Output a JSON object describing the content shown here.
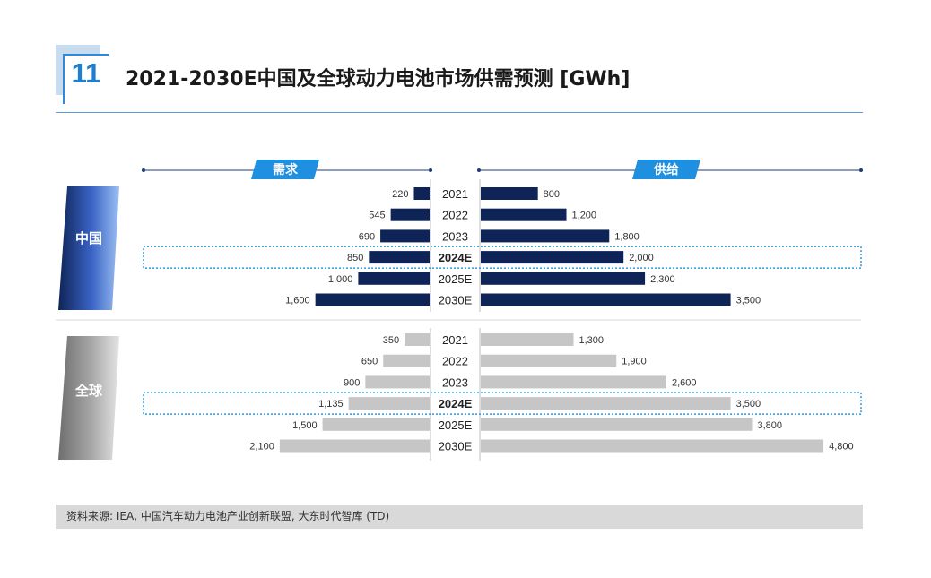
{
  "header": {
    "page_number": "11",
    "title": "2021-2030E中国及全球动力电池市场供需预测 [GWh]"
  },
  "legend": {
    "demand_label": "需求",
    "supply_label": "供给"
  },
  "groups": {
    "china_label": "中国",
    "global_label": "全球"
  },
  "colors": {
    "china_bar": "#0f2456",
    "global_bar": "#c6c6c6",
    "accent_blue": "#1f8fe0",
    "highlight_border": "#2f96d6"
  },
  "highlight_year": "2024E",
  "source": "资料来源: IEA, 中国汽车动力电池产业创新联盟, 大东时代智库 (TD)",
  "chart_data": [
    {
      "type": "bar",
      "name": "中国",
      "categories": [
        "2021",
        "2022",
        "2023",
        "2024E",
        "2025E",
        "2030E"
      ],
      "series": [
        {
          "name": "需求",
          "values": [
            220,
            545,
            690,
            850,
            1000,
            1600
          ],
          "labels": [
            "220",
            "545",
            "690",
            "850",
            "1,000",
            "1,600"
          ]
        },
        {
          "name": "供给",
          "values": [
            800,
            1200,
            1800,
            2000,
            2300,
            3500
          ],
          "labels": [
            "800",
            "1,200",
            "1,800",
            "2,000",
            "2,300",
            "3,500"
          ]
        }
      ]
    },
    {
      "type": "bar",
      "name": "全球",
      "categories": [
        "2021",
        "2022",
        "2023",
        "2024E",
        "2025E",
        "2030E"
      ],
      "series": [
        {
          "name": "需求",
          "values": [
            350,
            650,
            900,
            1135,
            1500,
            2100
          ],
          "labels": [
            "350",
            "650",
            "900",
            "1,135",
            "1,500",
            "2,100"
          ]
        },
        {
          "name": "供给",
          "values": [
            1300,
            1900,
            2600,
            3500,
            3800,
            4800
          ],
          "labels": [
            "1,300",
            "1,900",
            "2,600",
            "3,500",
            "3,800",
            "4,800"
          ]
        }
      ]
    }
  ]
}
